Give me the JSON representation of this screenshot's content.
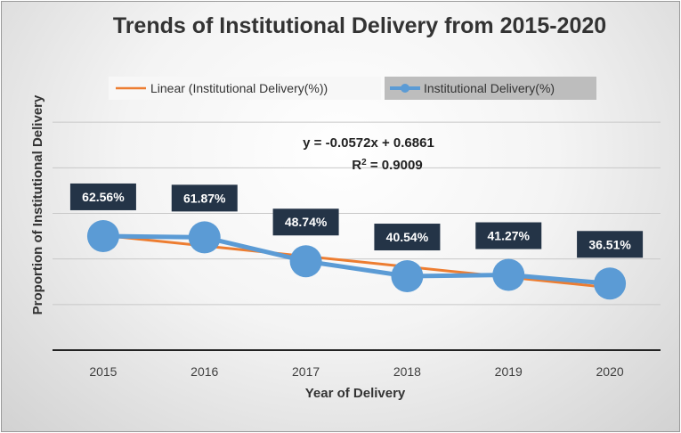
{
  "chart_data": {
    "type": "line",
    "title": "Trends of Institutional Delivery from 2015-2020",
    "xlabel": "Year of Delivery",
    "ylabel": "Proportion of Institutional Delivery",
    "categories": [
      "2015",
      "2016",
      "2017",
      "2018",
      "2019",
      "2020"
    ],
    "ylim": [
      0,
      1.5
    ],
    "grid": true,
    "series": [
      {
        "name": "Institutional Delivery(%)",
        "values": [
          0.6256,
          0.6187,
          0.4874,
          0.4054,
          0.4127,
          0.3651
        ],
        "data_labels": [
          "62.56%",
          "61.87%",
          "48.74%",
          "40.54%",
          "41.27%",
          "36.51%"
        ],
        "color": "#5b9bd5"
      }
    ],
    "trendline": {
      "name": "Linear (Institutional Delivery(%))",
      "slope": -0.0572,
      "intercept": 0.6861,
      "color": "#ed7d31",
      "equation": "y = -0.0572x + 0.6861",
      "r2_prefix": "R",
      "r2_exponent": "2",
      "r2_value": " = 0.9009"
    },
    "legend_position": "top",
    "label_box_color": "#243447"
  }
}
